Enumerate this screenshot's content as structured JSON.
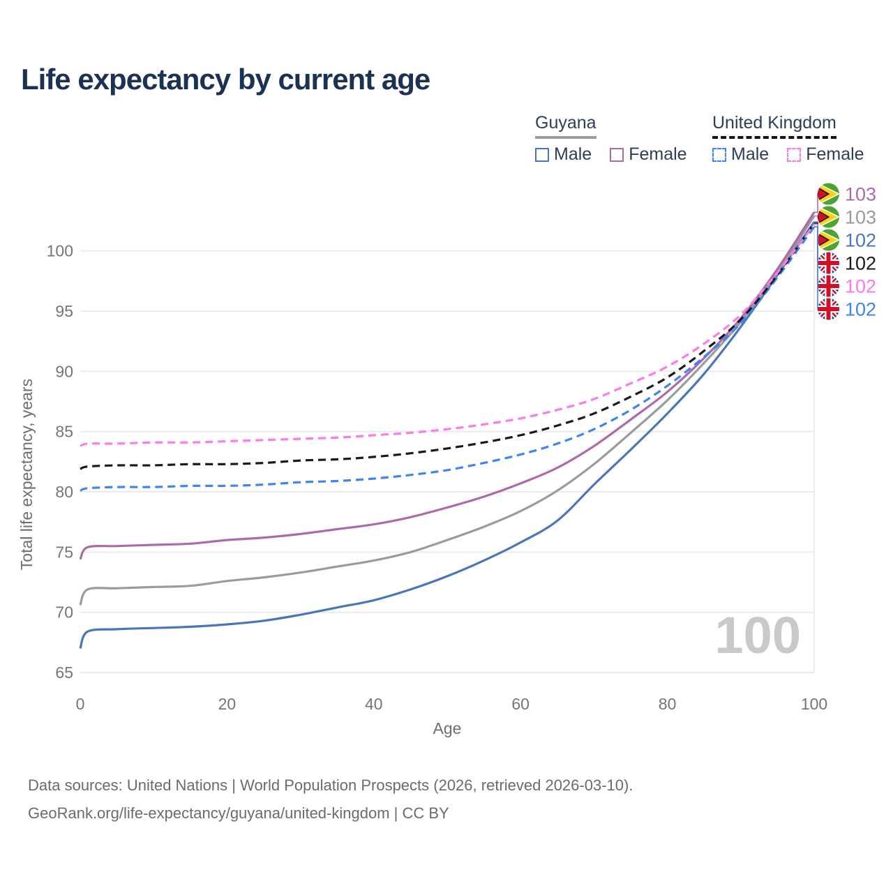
{
  "page": {
    "title": "Life expectancy by current age",
    "watermark": "100",
    "footer_line1": "Data sources: United Nations | World Population Prospects (2026, retrieved 2026-03-10).",
    "footer_line2": "GeoRank.org/life-expectancy/guyana/united-kingdom | CC BY"
  },
  "legend": {
    "groups": [
      {
        "label": "Guyana",
        "underline_style": "solid",
        "underline_color": "#9e9e9e",
        "items": [
          {
            "label": "Male",
            "color": "#4a76b9",
            "dashed": false
          },
          {
            "label": "Female",
            "color": "#ad6aab",
            "dashed": false
          }
        ]
      },
      {
        "label": "United Kingdom",
        "underline_style": "dashed",
        "underline_color": "#141414",
        "items": [
          {
            "label": "Male",
            "color": "#3f85f2",
            "dashed": true
          },
          {
            "label": "Female",
            "color": "#fb7ce8",
            "dashed": true
          }
        ]
      }
    ]
  },
  "chart_data": {
    "type": "line",
    "title": "Life expectancy by current age",
    "xlabel": "Age",
    "ylabel": "Total life expectancy, years",
    "x_ticks": [
      0,
      20,
      40,
      60,
      80,
      100
    ],
    "y_ticks": [
      65,
      70,
      75,
      80,
      85,
      90,
      95,
      100
    ],
    "xlim": [
      0,
      100
    ],
    "ylim": [
      65,
      103.5
    ],
    "grid": "horizontal-only",
    "legend_position": "top-right",
    "ages": [
      0,
      1,
      5,
      10,
      15,
      20,
      25,
      30,
      35,
      40,
      45,
      50,
      55,
      60,
      65,
      70,
      75,
      80,
      85,
      90,
      95,
      100
    ],
    "series": [
      {
        "name": "Guyana Male",
        "country": "Guyana",
        "sex": "Male",
        "flag": "guyana",
        "style": "solid",
        "color": "#4a76b9",
        "end_label": "102",
        "values": [
          67.0,
          68.4,
          68.6,
          68.7,
          68.8,
          69.0,
          69.3,
          69.8,
          70.4,
          71.0,
          71.9,
          73.0,
          74.3,
          75.8,
          77.6,
          80.6,
          83.5,
          86.5,
          89.8,
          93.7,
          98.0,
          102.4
        ]
      },
      {
        "name": "Guyana Both sexes",
        "country": "Guyana",
        "sex": "Both",
        "flag": "guyana",
        "style": "solid",
        "color": "#9b9b9b",
        "end_label": "103",
        "values": [
          70.6,
          71.9,
          72.0,
          72.1,
          72.2,
          72.6,
          72.9,
          73.3,
          73.8,
          74.3,
          75.0,
          76.0,
          77.1,
          78.4,
          80.1,
          82.3,
          84.9,
          87.6,
          90.7,
          94.1,
          98.2,
          102.9
        ]
      },
      {
        "name": "Guyana Female",
        "country": "Guyana",
        "sex": "Female",
        "flag": "guyana",
        "style": "solid",
        "color": "#ad6aab",
        "end_label": "103",
        "values": [
          74.4,
          75.4,
          75.5,
          75.6,
          75.7,
          76.0,
          76.2,
          76.5,
          76.9,
          77.3,
          77.9,
          78.7,
          79.6,
          80.7,
          82.0,
          83.8,
          86.0,
          88.3,
          91.1,
          94.4,
          98.5,
          103.2
        ]
      },
      {
        "name": "United Kingdom Male",
        "country": "United Kingdom",
        "sex": "Male",
        "flag": "uk",
        "style": "dashed",
        "color": "#3f85f2",
        "end_label": "102",
        "values": [
          80.1,
          80.3,
          80.4,
          80.4,
          80.5,
          80.5,
          80.6,
          80.8,
          80.9,
          81.1,
          81.4,
          81.8,
          82.4,
          83.1,
          84.0,
          85.2,
          86.8,
          88.8,
          91.2,
          94.0,
          97.8,
          102.0
        ]
      },
      {
        "name": "United Kingdom Both sexes",
        "country": "United Kingdom",
        "sex": "Both",
        "flag": "uk",
        "style": "dashed",
        "color": "#1a1a1a",
        "end_label": "102",
        "values": [
          81.9,
          82.1,
          82.2,
          82.2,
          82.3,
          82.3,
          82.4,
          82.6,
          82.7,
          82.9,
          83.2,
          83.6,
          84.1,
          84.7,
          85.5,
          86.5,
          87.9,
          89.5,
          91.7,
          94.3,
          98.0,
          102.3
        ]
      },
      {
        "name": "United Kingdom Female",
        "country": "United Kingdom",
        "sex": "Female",
        "flag": "uk",
        "style": "dashed",
        "color": "#fb7ce8",
        "end_label": "102",
        "values": [
          83.8,
          84.0,
          84.0,
          84.1,
          84.1,
          84.2,
          84.3,
          84.4,
          84.5,
          84.7,
          84.9,
          85.2,
          85.6,
          86.1,
          86.8,
          87.7,
          89.0,
          90.4,
          92.3,
          94.7,
          98.2,
          102.2
        ]
      }
    ]
  }
}
